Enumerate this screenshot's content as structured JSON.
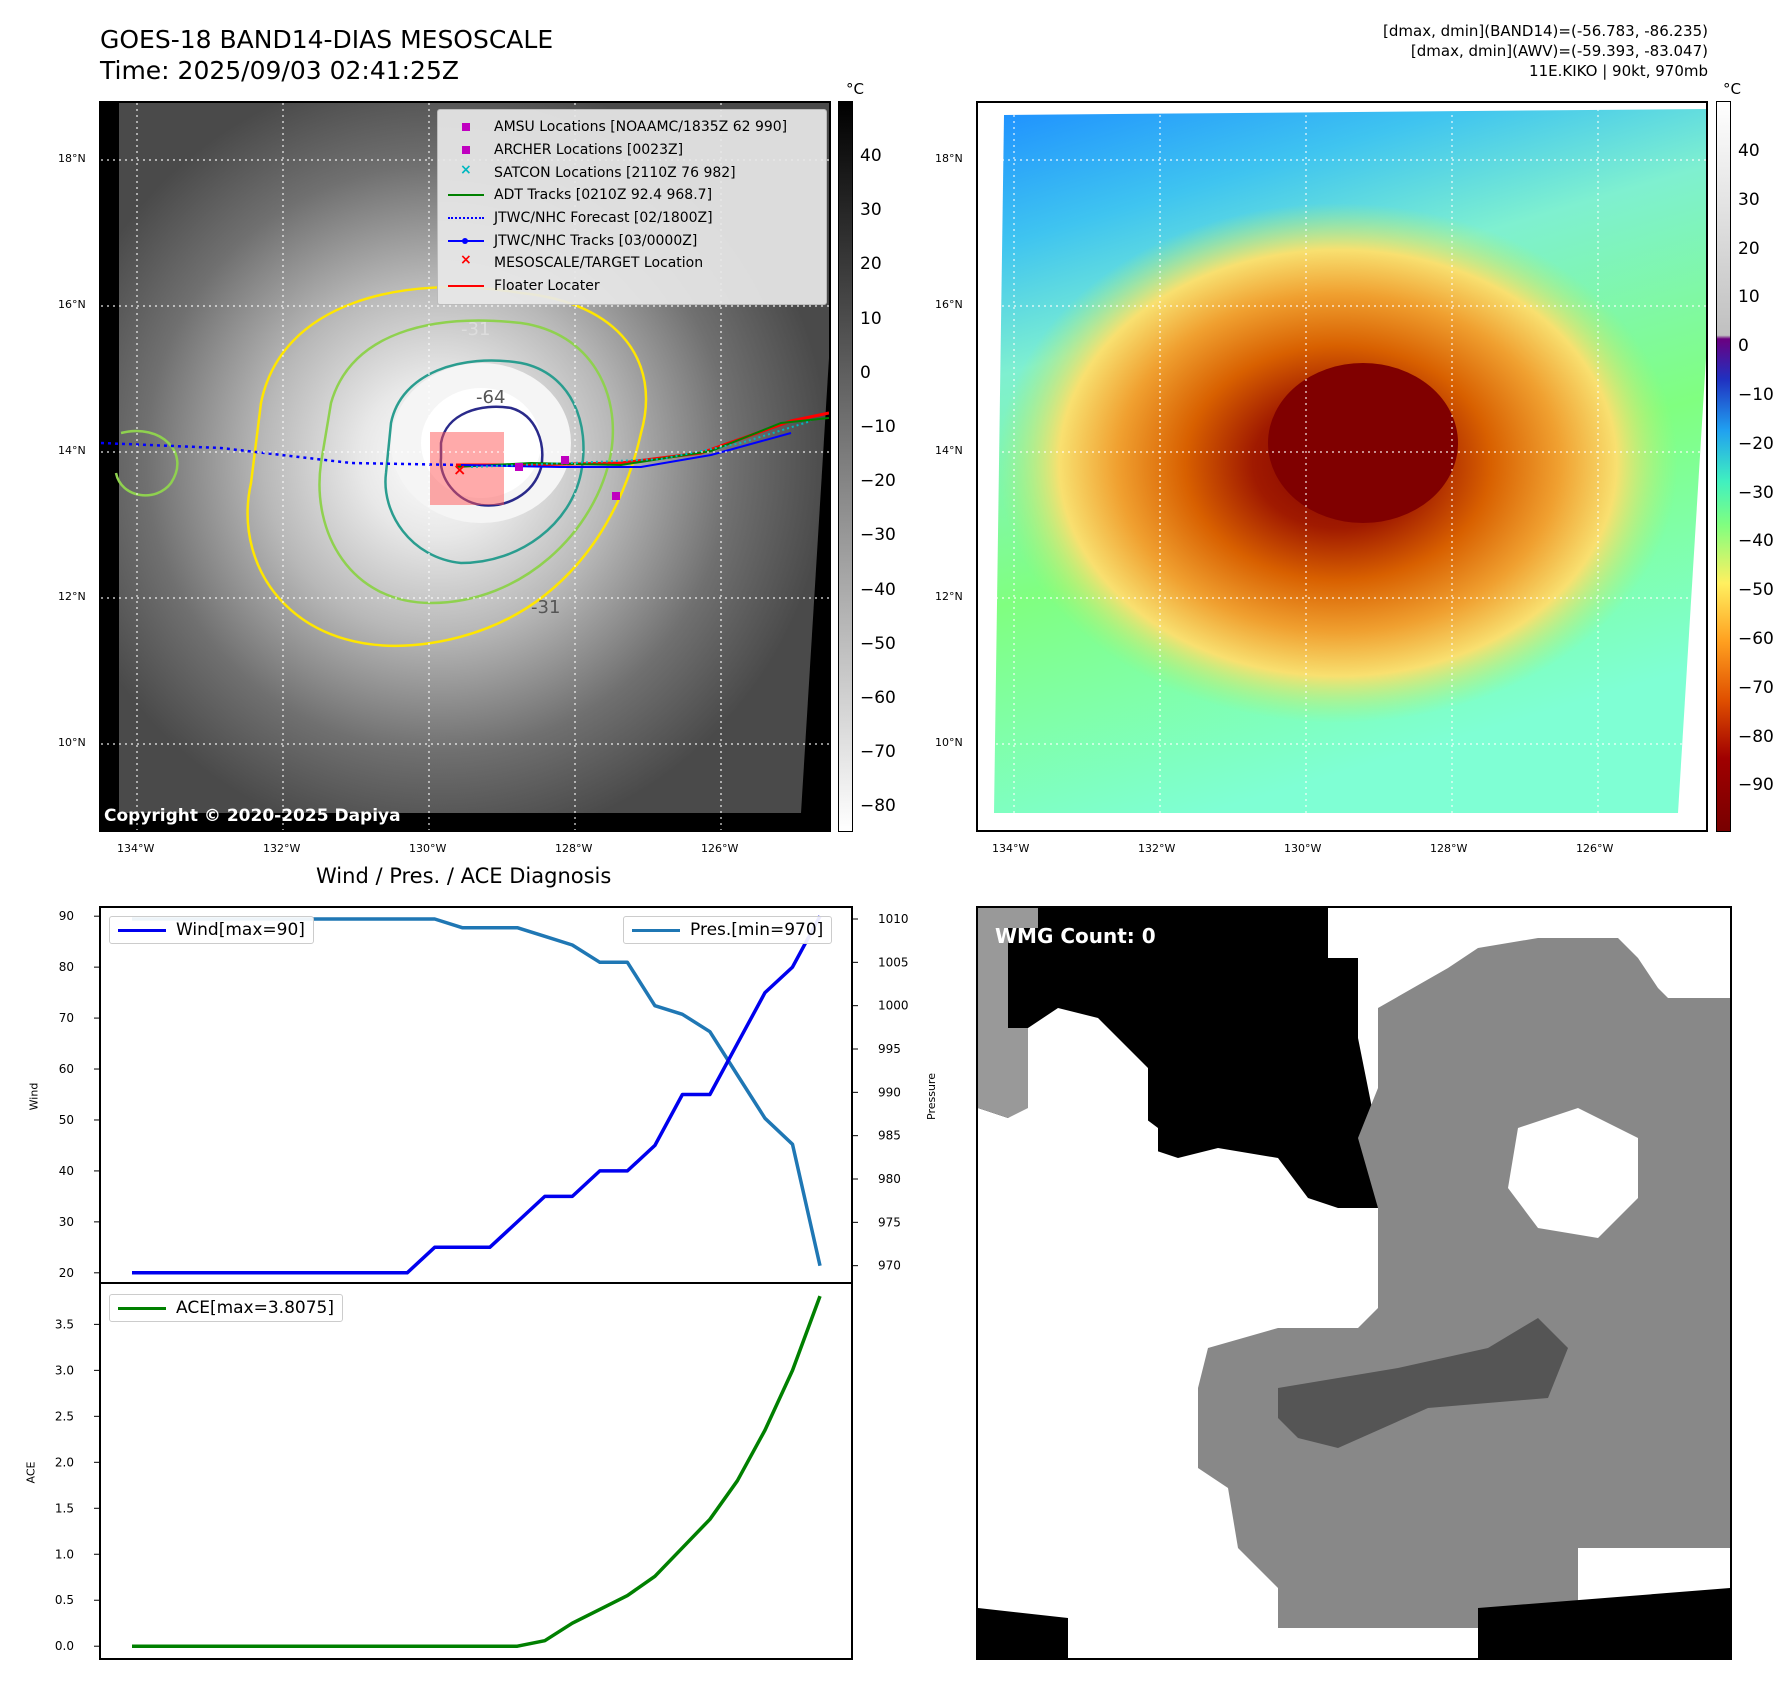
{
  "header": {
    "title_line1": "GOES-18 BAND14-DIAS MESOSCALE",
    "title_line2": "Time: 2025/09/03 02:41:25Z",
    "info_line1": "[dmax, dmin](BAND14)=(-56.783, -86.235)",
    "info_line2": "[dmax, dmin](AWV)=(-59.393, -83.047)",
    "info_line3": "11E.KIKO | 90kt, 970mb"
  },
  "map_axes": {
    "lat_ticks": [
      "18°N",
      "16°N",
      "14°N",
      "12°N",
      "10°N"
    ],
    "lon_ticks": [
      "134°W",
      "132°W",
      "130°W",
      "128°W",
      "126°W"
    ]
  },
  "ir_panel": {
    "copyright": "Copyright © 2020-2025 Dapiya",
    "contour_labels": [
      "-31",
      "-64",
      "-31"
    ],
    "colorbar_unit": "°C",
    "colorbar_ticks": [
      "40",
      "30",
      "20",
      "10",
      "0",
      "−10",
      "−20",
      "−30",
      "−40",
      "−50",
      "−60",
      "−70",
      "−80"
    ],
    "legend": [
      {
        "label": "AMSU Locations [NOAAMC/1835Z 62 990]",
        "color": "#c000c0",
        "icon": "square-marker-icon"
      },
      {
        "label": "ARCHER Locations [0023Z]",
        "color": "#c000c0",
        "icon": "square-marker-icon"
      },
      {
        "label": "SATCON Locations [2110Z 76 982]",
        "color": "#00b8c0",
        "icon": "x-marker-icon"
      },
      {
        "label": "ADT Tracks [0210Z 92.4 968.7]",
        "color": "#008000",
        "icon": "solid-line-icon"
      },
      {
        "label": "JTWC/NHC Forecast [02/1800Z]",
        "color": "#0000ff",
        "icon": "dotted-line-icon"
      },
      {
        "label": "JTWC/NHC Tracks [03/0000Z]",
        "color": "#0000ff",
        "icon": "line-dot-icon"
      },
      {
        "label": "MESOSCALE/TARGET Location",
        "color": "#ff0000",
        "icon": "x-marker-icon"
      },
      {
        "label": "Floater Locater",
        "color": "#ff0000",
        "icon": "solid-line-icon"
      }
    ]
  },
  "awv_panel": {
    "colorbar_unit": "°C",
    "colorbar_ticks": [
      "40",
      "30",
      "20",
      "10",
      "0",
      "−10",
      "−20",
      "−30",
      "−40",
      "−50",
      "−60",
      "−70",
      "−80",
      "−90"
    ]
  },
  "wmg_panel": {
    "label": "WMG Count: 0"
  },
  "chart_data": [
    {
      "type": "line",
      "title": "Wind / Pres. / ACE Diagnosis",
      "ylabel": "Wind",
      "y2label": "Pressure",
      "ylim": [
        18,
        92
      ],
      "y2lim": [
        968,
        1011.5
      ],
      "yticks": [
        90,
        80,
        70,
        60,
        50,
        40,
        30,
        20
      ],
      "y2ticks": [
        1010,
        1005,
        1000,
        995,
        990,
        985,
        980,
        975,
        970
      ],
      "series": [
        {
          "name": "Wind[max=90]",
          "color": "#0000ee",
          "values": [
            20,
            20,
            20,
            20,
            20,
            20,
            20,
            20,
            20,
            20,
            20,
            25,
            25,
            25,
            30,
            35,
            35,
            40,
            40,
            45,
            55,
            55,
            65,
            75,
            80,
            90
          ]
        },
        {
          "name": "Pres.[min=970]",
          "color": "#1f77b4",
          "values": [
            1010,
            1010,
            1010,
            1010,
            1010,
            1010,
            1010,
            1010,
            1010,
            1010,
            1010,
            1010,
            1009,
            1009,
            1009,
            1008,
            1007,
            1005,
            1005,
            1000,
            999,
            997,
            992,
            987,
            984,
            970
          ]
        }
      ]
    },
    {
      "type": "line",
      "ylabel": "ACE",
      "ylim": [
        -0.15,
        3.95
      ],
      "yticks": [
        0.0,
        0.5,
        1.0,
        1.5,
        2.0,
        2.5,
        3.0,
        3.5
      ],
      "ytick_labels": [
        "0.0",
        "0.5",
        "1.0",
        "1.5",
        "2.0",
        "2.5",
        "3.0",
        "3.5"
      ],
      "series": [
        {
          "name": "ACE[max=3.8075]",
          "color": "#008000",
          "values": [
            0,
            0,
            0,
            0,
            0,
            0,
            0,
            0,
            0,
            0,
            0,
            0,
            0,
            0,
            0,
            0.06,
            0.25,
            0.4,
            0.55,
            0.76,
            1.07,
            1.38,
            1.8,
            2.35,
            3.0,
            3.8075
          ]
        }
      ]
    }
  ]
}
